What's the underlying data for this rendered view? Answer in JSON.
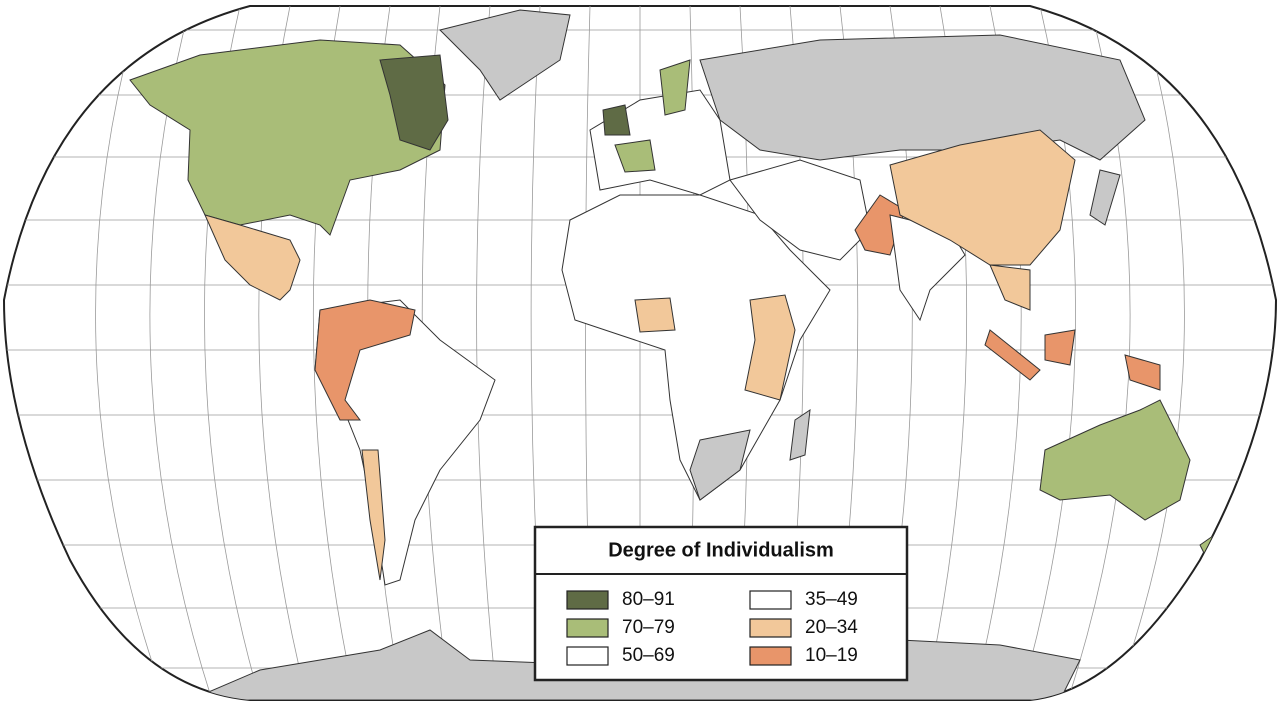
{
  "legend": {
    "title": "Degree of Individualism",
    "items": [
      {
        "label": "80–91",
        "color": "#5f6b45"
      },
      {
        "label": "70–79",
        "color": "#a9bd78"
      },
      {
        "label": "50–69",
        "color": "#ffffff"
      },
      {
        "label": "35–49",
        "color": "#ffffff"
      },
      {
        "label": "20–34",
        "color": "#f2c89a"
      },
      {
        "label": "10–19",
        "color": "#e8956a"
      }
    ]
  }
}
